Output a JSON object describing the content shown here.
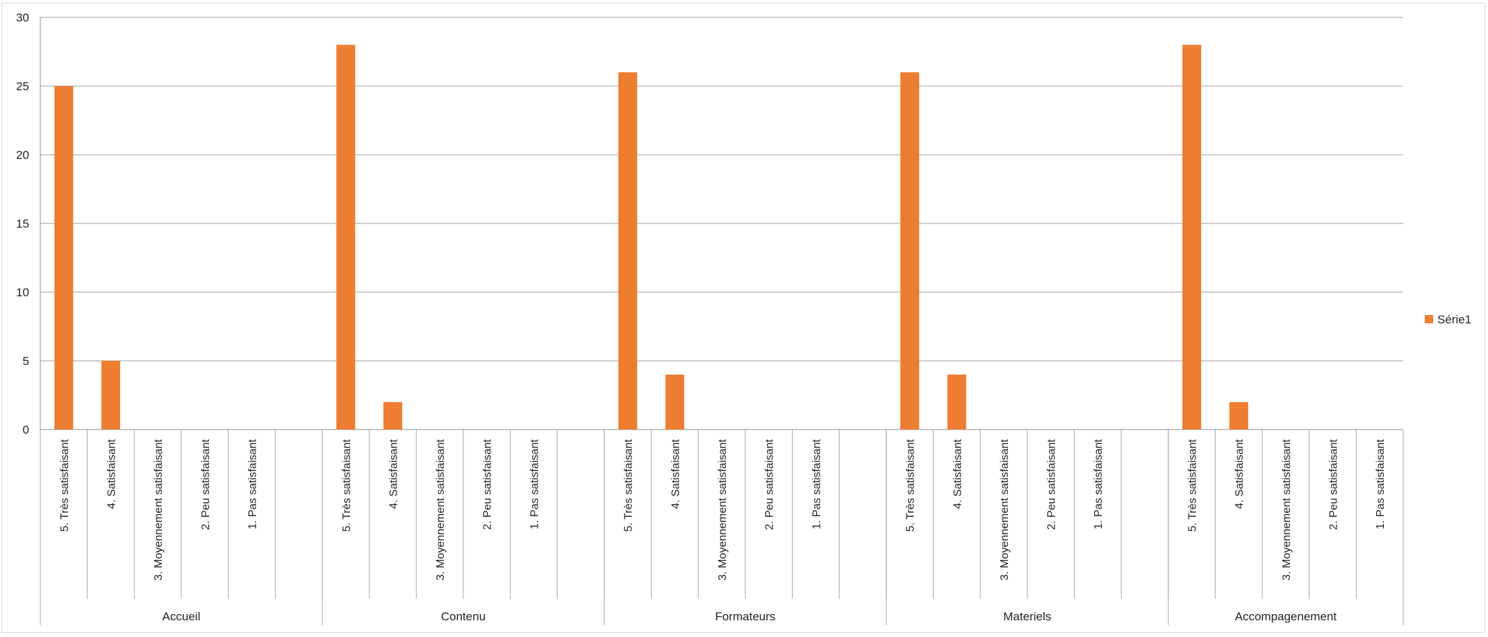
{
  "chart_data": {
    "type": "bar",
    "groups": [
      {
        "label": "Accueil",
        "categories": [
          "5. Très satisfaisant",
          "4. Satisfaisant",
          "3. Moyennement satisfaisant",
          "2. Peu satisfaisant",
          "1. Pas satisfaisant",
          ""
        ],
        "values": [
          25,
          5,
          0,
          0,
          0,
          null
        ]
      },
      {
        "label": "Contenu",
        "categories": [
          "5. Très satisfaisant",
          "4. Satisfaisant",
          "3. Moyennement satisfaisant",
          "2. Peu satisfaisant",
          "1. Pas satisfaisant",
          ""
        ],
        "values": [
          28,
          2,
          0,
          0,
          0,
          null
        ]
      },
      {
        "label": "Formateurs",
        "categories": [
          "5. Très satisfaisant",
          "4. Satisfaisant",
          "3. Moyennement satisfaisant",
          "2. Peu satisfaisant",
          "1. Pas satisfaisant",
          ""
        ],
        "values": [
          26,
          4,
          0,
          0,
          0,
          null
        ]
      },
      {
        "label": "Materiels",
        "categories": [
          "5. Très satisfaisant",
          "4. Satisfaisant",
          "3. Moyennement satisfaisant",
          "2. Peu satisfaisant",
          "1. Pas satisfaisant",
          ""
        ],
        "values": [
          26,
          4,
          0,
          0,
          0,
          null
        ]
      },
      {
        "label": "Accompagenement",
        "categories": [
          "5. Très satisfaisant",
          "4. Satisfaisant",
          "3. Moyennement satisfaisant",
          "2. Peu satisfaisant",
          "1. Pas satisfaisant"
        ],
        "values": [
          28,
          2,
          0,
          0,
          0
        ]
      }
    ],
    "series": [
      {
        "name": "Série1",
        "color": "#ed7d31"
      }
    ],
    "ylim": [
      0,
      30
    ],
    "yticks": [
      0,
      5,
      10,
      15,
      20,
      25,
      30
    ],
    "grid": true,
    "legend": "right",
    "title": "",
    "xlabel": "",
    "ylabel": ""
  }
}
